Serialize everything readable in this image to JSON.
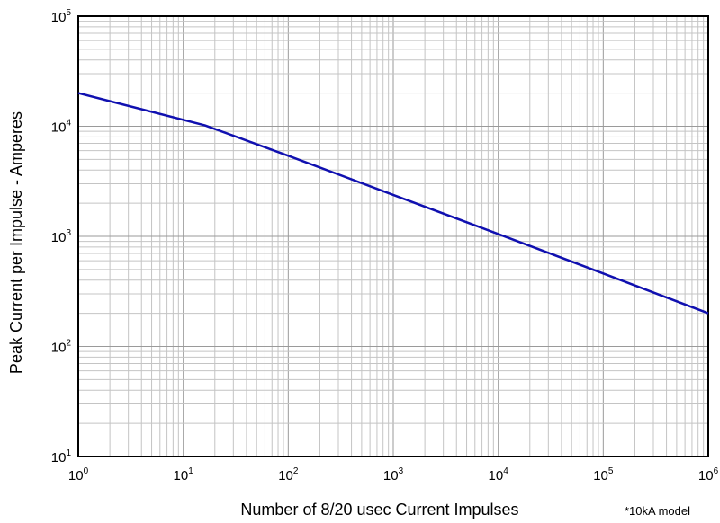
{
  "chart_data": {
    "type": "line",
    "xscale": "log",
    "yscale": "log",
    "xlim": [
      1,
      1000000
    ],
    "ylim": [
      10,
      100000
    ],
    "grid": true,
    "xlabel": "Number of 8/20 usec Current Impulses",
    "ylabel": "Peak Current per Impulse - Amperes",
    "note": "*10kA model",
    "x_ticks": [
      {
        "base": "10",
        "exp": "0",
        "value": 1
      },
      {
        "base": "10",
        "exp": "1",
        "value": 10
      },
      {
        "base": "10",
        "exp": "2",
        "value": 100
      },
      {
        "base": "10",
        "exp": "3",
        "value": 1000
      },
      {
        "base": "10",
        "exp": "4",
        "value": 10000
      },
      {
        "base": "10",
        "exp": "5",
        "value": 100000
      },
      {
        "base": "10",
        "exp": "6",
        "value": 1000000
      }
    ],
    "y_ticks": [
      {
        "base": "10",
        "exp": "1",
        "value": 10
      },
      {
        "base": "10",
        "exp": "2",
        "value": 100
      },
      {
        "base": "10",
        "exp": "3",
        "value": 1000
      },
      {
        "base": "10",
        "exp": "4",
        "value": 10000
      },
      {
        "base": "10",
        "exp": "5",
        "value": 100000
      }
    ],
    "series": [
      {
        "color": "#1010b0",
        "x": [
          1,
          16,
          100,
          1000,
          10000,
          100000,
          1000000
        ],
        "y": [
          20000,
          10200,
          5400,
          2380,
          1050,
          460,
          200
        ]
      }
    ]
  }
}
